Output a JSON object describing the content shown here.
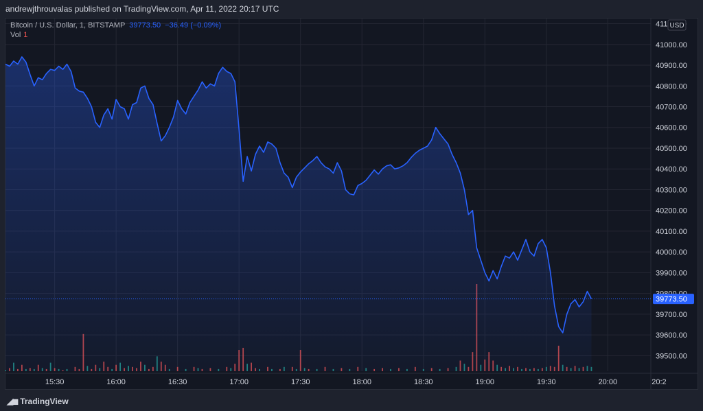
{
  "header": {
    "publisher_line": "andrewjthrouvalas published on TradingView.com, Apr 11, 2022 20:17 UTC"
  },
  "legend": {
    "symbol": "Bitcoin / U.S. Dollar, 1, BITSTAMP",
    "last": "39773.50",
    "change": "−36.49 (−0.09%)",
    "volume_label": "Vol",
    "volume_value": "1"
  },
  "footer": {
    "brand": "TradingView"
  },
  "chart_data": {
    "type": "area",
    "title": "Bitcoin / U.S. Dollar, 1, BITSTAMP",
    "currency": "USD",
    "ylim": [
      39425,
      41125
    ],
    "y_ticks": [
      39500,
      39600,
      39700,
      39800,
      39900,
      40000,
      40100,
      40200,
      40300,
      40400,
      40500,
      40600,
      40700,
      40800,
      40900,
      41000,
      41100
    ],
    "y_tick_labels": [
      "39500.00",
      "39600.00",
      "39700.00",
      "39800.00",
      "39900.00",
      "40000.00",
      "40100.00",
      "40200.00",
      "40300.00",
      "40400.00",
      "40500.00",
      "40600.00",
      "40700.00",
      "40800.00",
      "40900.00",
      "41000.00",
      "41100.00"
    ],
    "x_range_minutes": [
      906,
      1221
    ],
    "x_ticks": [
      {
        "label": "15:30",
        "minute": 930
      },
      {
        "label": "16:00",
        "minute": 960
      },
      {
        "label": "16:30",
        "minute": 990
      },
      {
        "label": "17:00",
        "minute": 1020
      },
      {
        "label": "17:30",
        "minute": 1050
      },
      {
        "label": "18:00",
        "minute": 1080
      },
      {
        "label": "18:30",
        "minute": 1110
      },
      {
        "label": "19:00",
        "minute": 1140
      },
      {
        "label": "19:30",
        "minute": 1170
      },
      {
        "label": "20:00",
        "minute": 1200
      },
      {
        "label": "20:2",
        "minute": 1225
      }
    ],
    "last_price": 39773.5,
    "last_price_label": "39773.50",
    "price_series": [
      [
        906,
        40905
      ],
      [
        908,
        40895
      ],
      [
        910,
        40920
      ],
      [
        912,
        40905
      ],
      [
        914,
        40940
      ],
      [
        916,
        40915
      ],
      [
        918,
        40855
      ],
      [
        920,
        40800
      ],
      [
        922,
        40840
      ],
      [
        924,
        40830
      ],
      [
        926,
        40860
      ],
      [
        928,
        40880
      ],
      [
        930,
        40875
      ],
      [
        932,
        40895
      ],
      [
        934,
        40880
      ],
      [
        936,
        40905
      ],
      [
        938,
        40870
      ],
      [
        940,
        40790
      ],
      [
        942,
        40775
      ],
      [
        944,
        40770
      ],
      [
        946,
        40740
      ],
      [
        948,
        40700
      ],
      [
        950,
        40625
      ],
      [
        952,
        40600
      ],
      [
        954,
        40660
      ],
      [
        956,
        40690
      ],
      [
        958,
        40640
      ],
      [
        960,
        40735
      ],
      [
        962,
        40700
      ],
      [
        964,
        40690
      ],
      [
        966,
        40640
      ],
      [
        968,
        40710
      ],
      [
        970,
        40720
      ],
      [
        972,
        40790
      ],
      [
        974,
        40800
      ],
      [
        976,
        40740
      ],
      [
        978,
        40710
      ],
      [
        980,
        40620
      ],
      [
        982,
        40535
      ],
      [
        984,
        40560
      ],
      [
        986,
        40600
      ],
      [
        988,
        40650
      ],
      [
        990,
        40730
      ],
      [
        992,
        40690
      ],
      [
        994,
        40665
      ],
      [
        996,
        40720
      ],
      [
        998,
        40750
      ],
      [
        1000,
        40780
      ],
      [
        1002,
        40820
      ],
      [
        1004,
        40790
      ],
      [
        1006,
        40810
      ],
      [
        1008,
        40800
      ],
      [
        1010,
        40860
      ],
      [
        1012,
        40890
      ],
      [
        1014,
        40870
      ],
      [
        1016,
        40860
      ],
      [
        1018,
        40820
      ],
      [
        1020,
        40590
      ],
      [
        1022,
        40340
      ],
      [
        1024,
        40460
      ],
      [
        1026,
        40390
      ],
      [
        1028,
        40470
      ],
      [
        1030,
        40510
      ],
      [
        1032,
        40480
      ],
      [
        1034,
        40530
      ],
      [
        1036,
        40520
      ],
      [
        1038,
        40500
      ],
      [
        1040,
        40430
      ],
      [
        1042,
        40380
      ],
      [
        1044,
        40360
      ],
      [
        1046,
        40310
      ],
      [
        1048,
        40360
      ],
      [
        1050,
        40385
      ],
      [
        1052,
        40405
      ],
      [
        1054,
        40425
      ],
      [
        1056,
        40440
      ],
      [
        1058,
        40460
      ],
      [
        1060,
        40430
      ],
      [
        1062,
        40410
      ],
      [
        1064,
        40400
      ],
      [
        1066,
        40380
      ],
      [
        1068,
        40430
      ],
      [
        1070,
        40390
      ],
      [
        1072,
        40300
      ],
      [
        1074,
        40280
      ],
      [
        1076,
        40275
      ],
      [
        1078,
        40320
      ],
      [
        1080,
        40330
      ],
      [
        1082,
        40345
      ],
      [
        1084,
        40370
      ],
      [
        1086,
        40395
      ],
      [
        1088,
        40375
      ],
      [
        1090,
        40400
      ],
      [
        1092,
        40415
      ],
      [
        1094,
        40420
      ],
      [
        1096,
        40400
      ],
      [
        1098,
        40405
      ],
      [
        1100,
        40415
      ],
      [
        1102,
        40430
      ],
      [
        1104,
        40455
      ],
      [
        1106,
        40475
      ],
      [
        1108,
        40490
      ],
      [
        1110,
        40500
      ],
      [
        1112,
        40510
      ],
      [
        1114,
        40540
      ],
      [
        1116,
        40600
      ],
      [
        1118,
        40570
      ],
      [
        1120,
        40545
      ],
      [
        1122,
        40520
      ],
      [
        1124,
        40470
      ],
      [
        1126,
        40430
      ],
      [
        1128,
        40380
      ],
      [
        1130,
        40300
      ],
      [
        1132,
        40180
      ],
      [
        1134,
        40200
      ],
      [
        1136,
        40020
      ],
      [
        1138,
        39960
      ],
      [
        1140,
        39900
      ],
      [
        1142,
        39860
      ],
      [
        1144,
        39910
      ],
      [
        1146,
        39870
      ],
      [
        1148,
        39930
      ],
      [
        1150,
        39980
      ],
      [
        1152,
        39970
      ],
      [
        1154,
        40000
      ],
      [
        1156,
        39960
      ],
      [
        1158,
        40010
      ],
      [
        1160,
        40060
      ],
      [
        1162,
        40000
      ],
      [
        1164,
        39980
      ],
      [
        1166,
        40040
      ],
      [
        1168,
        40060
      ],
      [
        1170,
        40020
      ],
      [
        1172,
        39900
      ],
      [
        1174,
        39740
      ],
      [
        1176,
        39640
      ],
      [
        1178,
        39610
      ],
      [
        1180,
        39700
      ],
      [
        1182,
        39750
      ],
      [
        1184,
        39770
      ],
      [
        1186,
        39735
      ],
      [
        1188,
        39760
      ],
      [
        1190,
        39810
      ],
      [
        1192,
        39773.5
      ]
    ],
    "volume_series": [
      [
        906,
        1,
        "g"
      ],
      [
        908,
        3,
        "r"
      ],
      [
        910,
        8,
        "g"
      ],
      [
        912,
        2,
        "r"
      ],
      [
        914,
        6,
        "r"
      ],
      [
        916,
        2,
        "g"
      ],
      [
        918,
        3,
        "r"
      ],
      [
        920,
        2,
        "g"
      ],
      [
        922,
        6,
        "r"
      ],
      [
        924,
        3,
        "g"
      ],
      [
        926,
        2,
        "r"
      ],
      [
        928,
        8,
        "g"
      ],
      [
        930,
        3,
        "r"
      ],
      [
        932,
        2,
        "g"
      ],
      [
        934,
        1,
        "r"
      ],
      [
        936,
        2,
        "g"
      ],
      [
        940,
        4,
        "r"
      ],
      [
        942,
        2,
        "r"
      ],
      [
        944,
        35,
        "r"
      ],
      [
        946,
        5,
        "g"
      ],
      [
        948,
        2,
        "r"
      ],
      [
        950,
        6,
        "r"
      ],
      [
        952,
        3,
        "g"
      ],
      [
        954,
        9,
        "r"
      ],
      [
        956,
        4,
        "r"
      ],
      [
        958,
        2,
        "g"
      ],
      [
        960,
        6,
        "r"
      ],
      [
        962,
        8,
        "g"
      ],
      [
        964,
        3,
        "r"
      ],
      [
        966,
        5,
        "g"
      ],
      [
        968,
        4,
        "r"
      ],
      [
        970,
        3,
        "r"
      ],
      [
        972,
        9,
        "r"
      ],
      [
        974,
        6,
        "g"
      ],
      [
        976,
        2,
        "r"
      ],
      [
        978,
        4,
        "r"
      ],
      [
        980,
        14,
        "g"
      ],
      [
        982,
        9,
        "r"
      ],
      [
        984,
        6,
        "r"
      ],
      [
        986,
        2,
        "g"
      ],
      [
        990,
        4,
        "r"
      ],
      [
        994,
        2,
        "g"
      ],
      [
        998,
        4,
        "r"
      ],
      [
        1000,
        3,
        "g"
      ],
      [
        1002,
        2,
        "r"
      ],
      [
        1006,
        3,
        "r"
      ],
      [
        1010,
        2,
        "g"
      ],
      [
        1014,
        4,
        "r"
      ],
      [
        1016,
        3,
        "g"
      ],
      [
        1018,
        7,
        "r"
      ],
      [
        1020,
        20,
        "r"
      ],
      [
        1022,
        22,
        "r"
      ],
      [
        1024,
        7,
        "g"
      ],
      [
        1026,
        8,
        "r"
      ],
      [
        1028,
        3,
        "r"
      ],
      [
        1030,
        2,
        "g"
      ],
      [
        1034,
        4,
        "r"
      ],
      [
        1036,
        2,
        "g"
      ],
      [
        1040,
        2,
        "r"
      ],
      [
        1042,
        4,
        "g"
      ],
      [
        1046,
        4,
        "r"
      ],
      [
        1048,
        2,
        "g"
      ],
      [
        1050,
        20,
        "r"
      ],
      [
        1052,
        3,
        "g"
      ],
      [
        1054,
        2,
        "r"
      ],
      [
        1058,
        2,
        "g"
      ],
      [
        1062,
        4,
        "r"
      ],
      [
        1066,
        2,
        "g"
      ],
      [
        1070,
        3,
        "r"
      ],
      [
        1074,
        2,
        "g"
      ],
      [
        1078,
        4,
        "r"
      ],
      [
        1082,
        3,
        "g"
      ],
      [
        1086,
        2,
        "r"
      ],
      [
        1090,
        3,
        "r"
      ],
      [
        1094,
        2,
        "g"
      ],
      [
        1098,
        3,
        "r"
      ],
      [
        1102,
        2,
        "g"
      ],
      [
        1106,
        4,
        "r"
      ],
      [
        1110,
        2,
        "g"
      ],
      [
        1114,
        3,
        "r"
      ],
      [
        1118,
        2,
        "g"
      ],
      [
        1122,
        3,
        "r"
      ],
      [
        1126,
        4,
        "g"
      ],
      [
        1128,
        10,
        "r"
      ],
      [
        1130,
        7,
        "g"
      ],
      [
        1132,
        4,
        "r"
      ],
      [
        1134,
        18,
        "r"
      ],
      [
        1136,
        82,
        "r"
      ],
      [
        1138,
        6,
        "g"
      ],
      [
        1140,
        11,
        "r"
      ],
      [
        1142,
        18,
        "r"
      ],
      [
        1144,
        10,
        "r"
      ],
      [
        1146,
        6,
        "g"
      ],
      [
        1148,
        4,
        "r"
      ],
      [
        1150,
        3,
        "g"
      ],
      [
        1152,
        5,
        "r"
      ],
      [
        1154,
        3,
        "g"
      ],
      [
        1156,
        4,
        "r"
      ],
      [
        1158,
        2,
        "g"
      ],
      [
        1160,
        3,
        "r"
      ],
      [
        1162,
        2,
        "g"
      ],
      [
        1164,
        3,
        "r"
      ],
      [
        1166,
        2,
        "g"
      ],
      [
        1168,
        3,
        "r"
      ],
      [
        1170,
        4,
        "g"
      ],
      [
        1172,
        5,
        "r"
      ],
      [
        1174,
        4,
        "r"
      ],
      [
        1176,
        24,
        "r"
      ],
      [
        1178,
        6,
        "g"
      ],
      [
        1180,
        4,
        "r"
      ],
      [
        1182,
        3,
        "g"
      ],
      [
        1184,
        5,
        "r"
      ],
      [
        1186,
        3,
        "g"
      ],
      [
        1188,
        4,
        "r"
      ],
      [
        1190,
        5,
        "g"
      ],
      [
        1192,
        4,
        "g"
      ]
    ]
  },
  "colors": {
    "background": "#131722",
    "line": "#2962ff",
    "grid": "#242733",
    "axis_text": "#d1d4dc",
    "vol_up": "#26a69a",
    "vol_down": "#ef5350",
    "price_tag": "#2962ff"
  }
}
